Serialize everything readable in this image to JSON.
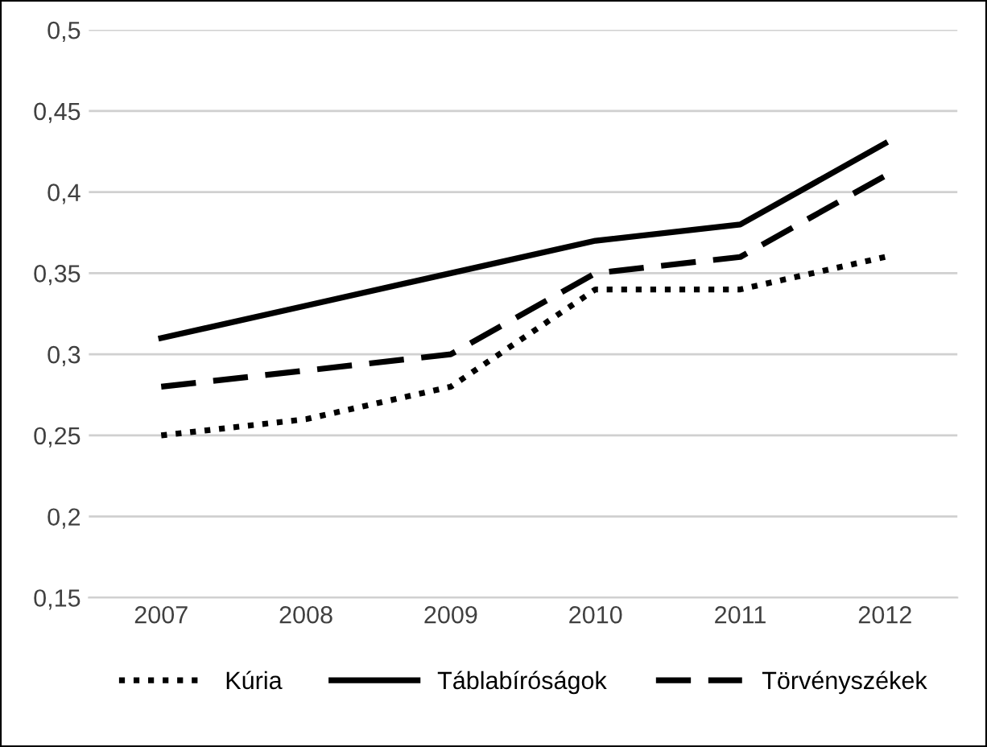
{
  "chart_data": {
    "type": "line",
    "categories": [
      "2007",
      "2008",
      "2009",
      "2010",
      "2011",
      "2012"
    ],
    "series": [
      {
        "name": "Kúria",
        "color": "#000000",
        "line_style": "dotted",
        "values": [
          0.25,
          0.26,
          0.28,
          0.34,
          0.34,
          0.36
        ]
      },
      {
        "name": "Táblabíróságok",
        "color": "#000000",
        "line_style": "solid",
        "values": [
          0.31,
          0.33,
          0.35,
          0.37,
          0.38,
          0.43
        ]
      },
      {
        "name": "Törvényszékek",
        "color": "#000000",
        "line_style": "dashed",
        "values": [
          0.28,
          0.29,
          0.3,
          0.35,
          0.36,
          0.41
        ]
      }
    ],
    "ylim": [
      0.15,
      0.5
    ],
    "yticks": [
      {
        "value": 0.15,
        "label": "0,15"
      },
      {
        "value": 0.2,
        "label": "0,2"
      },
      {
        "value": 0.25,
        "label": "0,25"
      },
      {
        "value": 0.3,
        "label": "0,3"
      },
      {
        "value": 0.35,
        "label": "0,35"
      },
      {
        "value": 0.4,
        "label": "0,4"
      },
      {
        "value": 0.45,
        "label": "0,45"
      },
      {
        "value": 0.5,
        "label": "0,5"
      }
    ],
    "grid": "y",
    "legend": "bottom",
    "marker": "none"
  }
}
